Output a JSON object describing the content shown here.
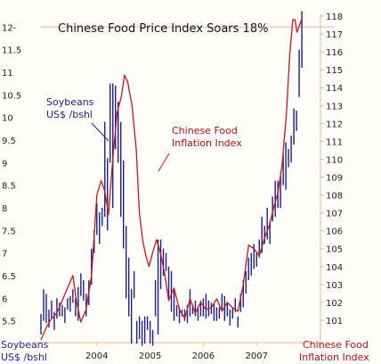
{
  "chart_data": {
    "type": "line",
    "title": "Chinese Food Price Index Soars 18%",
    "left_axis": {
      "label_line1": "Soybeans",
      "label_line2": "US$ /bshl",
      "ticks": [
        "5.5",
        "6",
        "6.5",
        "7",
        "7.5",
        "8",
        "8.5",
        "9",
        "9.5",
        "10",
        "10.5",
        "11",
        "11.5",
        "12-"
      ],
      "range": [
        5.0,
        12.4
      ]
    },
    "right_axis": {
      "label_line1": "Chinese Food",
      "label_line2": "Inflation Index",
      "ticks": [
        "101",
        "102",
        "103",
        "104",
        "105",
        "106",
        "107",
        "108",
        "109",
        "110",
        "111",
        "112",
        "113",
        "114",
        "115",
        "116",
        "117",
        "118"
      ],
      "range": [
        99.7,
        118.4
      ]
    },
    "x_axis": {
      "ticks": [
        {
          "label": "2004",
          "value": 2004.0
        },
        {
          "label": "2005",
          "value": 2005.0
        },
        {
          "label": "2006",
          "value": 2006.0
        },
        {
          "label": "2007",
          "value": 2007.0
        }
      ],
      "range": [
        2002.85,
        2008.2
      ]
    },
    "annotations": {
      "soy_line1": "Soybeans",
      "soy_line2": "US$ /bshl",
      "food_line1": "Chinese Food",
      "food_line2": "Inflation Index"
    },
    "colors": {
      "soybeans": "#1b1f8f",
      "food_index": "#c8161d",
      "axis": "#f2b98e",
      "label": "#22228e"
    },
    "series": [
      {
        "name": "Soybeans",
        "axis": "left",
        "style": "high-low bars",
        "points": [
          [
            2002.95,
            5.2,
            5.65
          ],
          [
            2003.0,
            5.5,
            6.2
          ],
          [
            2003.05,
            5.45,
            6.1
          ],
          [
            2003.1,
            5.35,
            5.75
          ],
          [
            2003.15,
            5.55,
            5.95
          ],
          [
            2003.2,
            5.3,
            5.7
          ],
          [
            2003.25,
            5.55,
            6.0
          ],
          [
            2003.3,
            5.6,
            5.9
          ],
          [
            2003.35,
            5.6,
            5.85
          ],
          [
            2003.4,
            5.45,
            5.8
          ],
          [
            2003.45,
            5.75,
            6.0
          ],
          [
            2003.5,
            5.7,
            6.05
          ],
          [
            2003.55,
            5.9,
            6.2
          ],
          [
            2003.6,
            5.6,
            6.0
          ],
          [
            2003.65,
            5.5,
            6.25
          ],
          [
            2003.7,
            6.05,
            6.55
          ],
          [
            2003.75,
            5.95,
            6.4
          ],
          [
            2003.8,
            5.6,
            6.1
          ],
          [
            2003.85,
            5.85,
            6.4
          ],
          [
            2003.9,
            6.3,
            7.1
          ],
          [
            2003.95,
            7.0,
            7.5
          ],
          [
            2004.0,
            7.4,
            8.1
          ],
          [
            2004.05,
            7.2,
            7.9
          ],
          [
            2004.1,
            7.6,
            8.0
          ],
          [
            2004.15,
            7.8,
            9.9
          ],
          [
            2004.2,
            7.5,
            9.1
          ],
          [
            2004.25,
            9.0,
            10.75
          ],
          [
            2004.3,
            8.0,
            10.75
          ],
          [
            2004.35,
            9.3,
            10.7
          ],
          [
            2004.4,
            9.0,
            10.35
          ],
          [
            2004.45,
            7.8,
            9.9
          ],
          [
            2004.5,
            7.1,
            9.05
          ],
          [
            2004.55,
            6.0,
            7.6
          ],
          [
            2004.6,
            5.6,
            6.9
          ],
          [
            2004.65,
            5.0,
            6.2
          ],
          [
            2004.7,
            6.0,
            6.6
          ],
          [
            2004.75,
            5.0,
            5.5
          ],
          [
            2004.8,
            5.1,
            5.6
          ],
          [
            2004.85,
            4.95,
            5.5
          ],
          [
            2004.9,
            5.0,
            5.6
          ],
          [
            2004.95,
            5.3,
            5.6
          ],
          [
            2005.0,
            5.0,
            5.5
          ],
          [
            2005.05,
            4.95,
            5.3
          ],
          [
            2005.1,
            5.6,
            6.4
          ],
          [
            2005.15,
            5.2,
            7.3
          ],
          [
            2005.2,
            6.2,
            7.3
          ],
          [
            2005.25,
            6.5,
            7.1
          ],
          [
            2005.3,
            6.6,
            7.0
          ],
          [
            2005.35,
            6.0,
            6.7
          ],
          [
            2005.4,
            5.7,
            6.6
          ],
          [
            2005.45,
            5.5,
            6.2
          ],
          [
            2005.5,
            5.6,
            5.85
          ],
          [
            2005.55,
            5.45,
            5.8
          ],
          [
            2005.6,
            5.6,
            5.75
          ],
          [
            2005.65,
            5.5,
            5.75
          ],
          [
            2005.7,
            5.45,
            5.85
          ],
          [
            2005.75,
            5.6,
            6.2
          ],
          [
            2005.8,
            5.65,
            5.85
          ],
          [
            2005.85,
            5.6,
            5.95
          ],
          [
            2005.9,
            5.5,
            5.8
          ],
          [
            2005.95,
            5.6,
            5.95
          ],
          [
            2006.0,
            5.6,
            6.0
          ],
          [
            2006.05,
            5.55,
            6.1
          ],
          [
            2006.1,
            5.6,
            5.95
          ],
          [
            2006.15,
            5.65,
            5.9
          ],
          [
            2006.2,
            5.5,
            5.9
          ],
          [
            2006.25,
            5.5,
            5.8
          ],
          [
            2006.3,
            5.55,
            5.8
          ],
          [
            2006.35,
            5.75,
            6.1
          ],
          [
            2006.4,
            5.5,
            6.05
          ],
          [
            2006.45,
            5.6,
            5.9
          ],
          [
            2006.5,
            5.4,
            5.75
          ],
          [
            2006.55,
            5.55,
            5.8
          ],
          [
            2006.6,
            5.7,
            6.0
          ],
          [
            2006.65,
            5.35,
            5.6
          ],
          [
            2006.7,
            5.7,
            6.1
          ],
          [
            2006.75,
            5.8,
            6.4
          ],
          [
            2006.8,
            6.1,
            6.6
          ],
          [
            2006.85,
            6.4,
            6.9
          ],
          [
            2006.9,
            6.5,
            7.0
          ],
          [
            2006.95,
            6.65,
            7.2
          ],
          [
            2007.0,
            6.7,
            7.0
          ],
          [
            2007.05,
            6.9,
            7.3
          ],
          [
            2007.1,
            7.0,
            7.8
          ],
          [
            2007.15,
            7.2,
            7.6
          ],
          [
            2007.2,
            7.3,
            8.0
          ],
          [
            2007.25,
            7.2,
            7.7
          ],
          [
            2007.3,
            7.7,
            8.25
          ],
          [
            2007.35,
            7.8,
            8.6
          ],
          [
            2007.4,
            8.0,
            8.6
          ],
          [
            2007.45,
            8.0,
            8.7
          ],
          [
            2007.5,
            8.5,
            9.2
          ],
          [
            2007.55,
            8.4,
            9.45
          ],
          [
            2007.6,
            8.9,
            9.3
          ],
          [
            2007.65,
            9.0,
            9.6
          ],
          [
            2007.7,
            9.4,
            10.2
          ],
          [
            2007.75,
            9.7,
            10.15
          ],
          [
            2007.8,
            10.45,
            11.5
          ],
          [
            2007.85,
            11.1,
            12.35
          ]
        ]
      },
      {
        "name": "Chinese Food Inflation Index",
        "axis": "right",
        "style": "line",
        "points": [
          [
            2002.95,
            99.9
          ],
          [
            2003.05,
            100.6
          ],
          [
            2003.15,
            101.1
          ],
          [
            2003.25,
            101.4
          ],
          [
            2003.35,
            102.1
          ],
          [
            2003.45,
            102.8
          ],
          [
            2003.55,
            103.5
          ],
          [
            2003.62,
            102.0
          ],
          [
            2003.7,
            100.9
          ],
          [
            2003.8,
            101.6
          ],
          [
            2003.9,
            103.5
          ],
          [
            2004.0,
            108.0
          ],
          [
            2004.08,
            108.8
          ],
          [
            2004.15,
            108.2
          ],
          [
            2004.22,
            106.9
          ],
          [
            2004.3,
            110.0
          ],
          [
            2004.38,
            112.6
          ],
          [
            2004.46,
            113.5
          ],
          [
            2004.52,
            114.7
          ],
          [
            2004.58,
            114.3
          ],
          [
            2004.66,
            113.0
          ],
          [
            2004.74,
            110.6
          ],
          [
            2004.8,
            107.0
          ],
          [
            2004.86,
            105.5
          ],
          [
            2004.92,
            104.6
          ],
          [
            2004.98,
            104.0
          ],
          [
            2005.05,
            104.8
          ],
          [
            2005.12,
            105.5
          ],
          [
            2005.2,
            104.7
          ],
          [
            2005.28,
            103.5
          ],
          [
            2005.35,
            102.1
          ],
          [
            2005.45,
            102.8
          ],
          [
            2005.55,
            101.6
          ],
          [
            2005.65,
            101.1
          ],
          [
            2005.75,
            102.2
          ],
          [
            2005.85,
            101.4
          ],
          [
            2005.95,
            102.0
          ],
          [
            2006.05,
            101.6
          ],
          [
            2006.15,
            101.7
          ],
          [
            2006.25,
            102.2
          ],
          [
            2006.35,
            101.5
          ],
          [
            2006.45,
            102.0
          ],
          [
            2006.55,
            101.7
          ],
          [
            2006.65,
            101.5
          ],
          [
            2006.75,
            103.0
          ],
          [
            2006.85,
            105.2
          ],
          [
            2006.95,
            105.0
          ],
          [
            2007.05,
            104.6
          ],
          [
            2007.15,
            105.6
          ],
          [
            2007.25,
            106.4
          ],
          [
            2007.32,
            107.3
          ],
          [
            2007.4,
            108.1
          ],
          [
            2007.48,
            109.7
          ],
          [
            2007.56,
            112.5
          ],
          [
            2007.62,
            115.7
          ],
          [
            2007.68,
            117.8
          ],
          [
            2007.72,
            117.8
          ],
          [
            2007.76,
            117.1
          ],
          [
            2007.82,
            117.6
          ],
          [
            2007.86,
            117.9
          ]
        ]
      }
    ]
  }
}
